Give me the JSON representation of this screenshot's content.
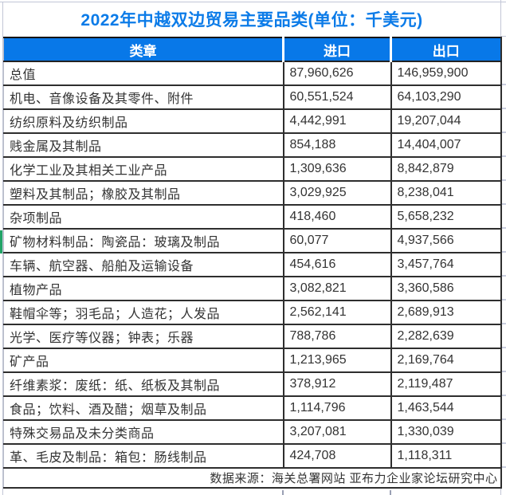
{
  "title": "2022年中越双边贸易主要品类(单位：千美元)",
  "table": {
    "headers": [
      "类章",
      "进口",
      "出口"
    ],
    "rows": [
      [
        "总值",
        "87,960,626",
        "146,959,900"
      ],
      [
        "机电、音像设备及其零件、附件",
        "60,551,524",
        "64,103,290"
      ],
      [
        "纺织原料及纺织制品",
        "4,442,991",
        "19,207,044"
      ],
      [
        "贱金属及其制品",
        "854,188",
        "14,404,007"
      ],
      [
        "化学工业及其相关工业产品",
        "1,309,636",
        "8,842,879"
      ],
      [
        "塑料及其制品；橡胶及其制品",
        "3,029,925",
        "8,238,041"
      ],
      [
        "杂项制品",
        "418,460",
        "5,658,232"
      ],
      [
        "矿物材料制品：陶瓷品：玻璃及制品",
        "60,077",
        "4,937,566"
      ],
      [
        "车辆、航空器、船舶及运输设备",
        "454,616",
        "3,457,764"
      ],
      [
        "植物产品",
        "3,082,821",
        "3,360,586"
      ],
      [
        "鞋帽伞等；羽毛品；人造花；人发品",
        "2,562,141",
        "2,689,913"
      ],
      [
        "光学、医疗等仪器；钟表；乐器",
        "788,786",
        "2,282,639"
      ],
      [
        "矿产品",
        "1,213,965",
        "2,169,764"
      ],
      [
        "纤维素浆：废纸：纸、纸板及其制品",
        "378,912",
        "2,119,487"
      ],
      [
        "食品；饮料、酒及醋；烟草及制品",
        "1,114,796",
        "1,463,544"
      ],
      [
        "特殊交易品及未分类商品",
        "3,207,081",
        "1,330,039"
      ],
      [
        "革、毛皮及制品：箱包：肠线制品",
        "424,708",
        "1,118,311"
      ]
    ],
    "footer": "数据来源：海关总署网站 亚布力企业家论坛研究中心"
  },
  "colors": {
    "title_blue": "#0b7be8",
    "header_bg_blue": "#0878e8",
    "header_text": "#ffffff",
    "body_text": "#333333",
    "border_dark": "#2e2e2e",
    "gridline_light": "#c2c6d6",
    "green_marker": "#21a366"
  },
  "chart_data": {
    "type": "table",
    "title": "2022年中越双边贸易主要品类(单位：千美元)",
    "columns": [
      "类章",
      "进口",
      "出口"
    ],
    "categories": [
      "总值",
      "机电、音像设备及其零件、附件",
      "纺织原料及纺织制品",
      "贱金属及其制品",
      "化学工业及其相关工业产品",
      "塑料及其制品；橡胶及其制品",
      "杂项制品",
      "矿物材料制品：陶瓷品：玻璃及制品",
      "车辆、航空器、船舶及运输设备",
      "植物产品",
      "鞋帽伞等；羽毛品；人造花；人发品",
      "光学、医疗等仪器；钟表；乐器",
      "矿产品",
      "纤维素浆：废纸：纸、纸板及其制品",
      "食品；饮料、酒及醋；烟草及制品",
      "特殊交易品及未分类商品",
      "革、毛皮及制品：箱包：肠线制品"
    ],
    "series": [
      {
        "name": "进口",
        "values": [
          87960626,
          60551524,
          4442991,
          854188,
          1309636,
          3029925,
          418460,
          60077,
          454616,
          3082821,
          2562141,
          788786,
          1213965,
          378912,
          1114796,
          3207081,
          424708
        ]
      },
      {
        "name": "出口",
        "values": [
          146959900,
          64103290,
          19207044,
          14404007,
          8842879,
          8238041,
          5658232,
          4937566,
          3457764,
          3360586,
          2689913,
          2282639,
          2169764,
          2119487,
          1463544,
          1330039,
          1118311
        ]
      }
    ],
    "unit": "千美元",
    "source_note": "数据来源：海关总署网站 亚布力企业家论坛研究中心"
  }
}
